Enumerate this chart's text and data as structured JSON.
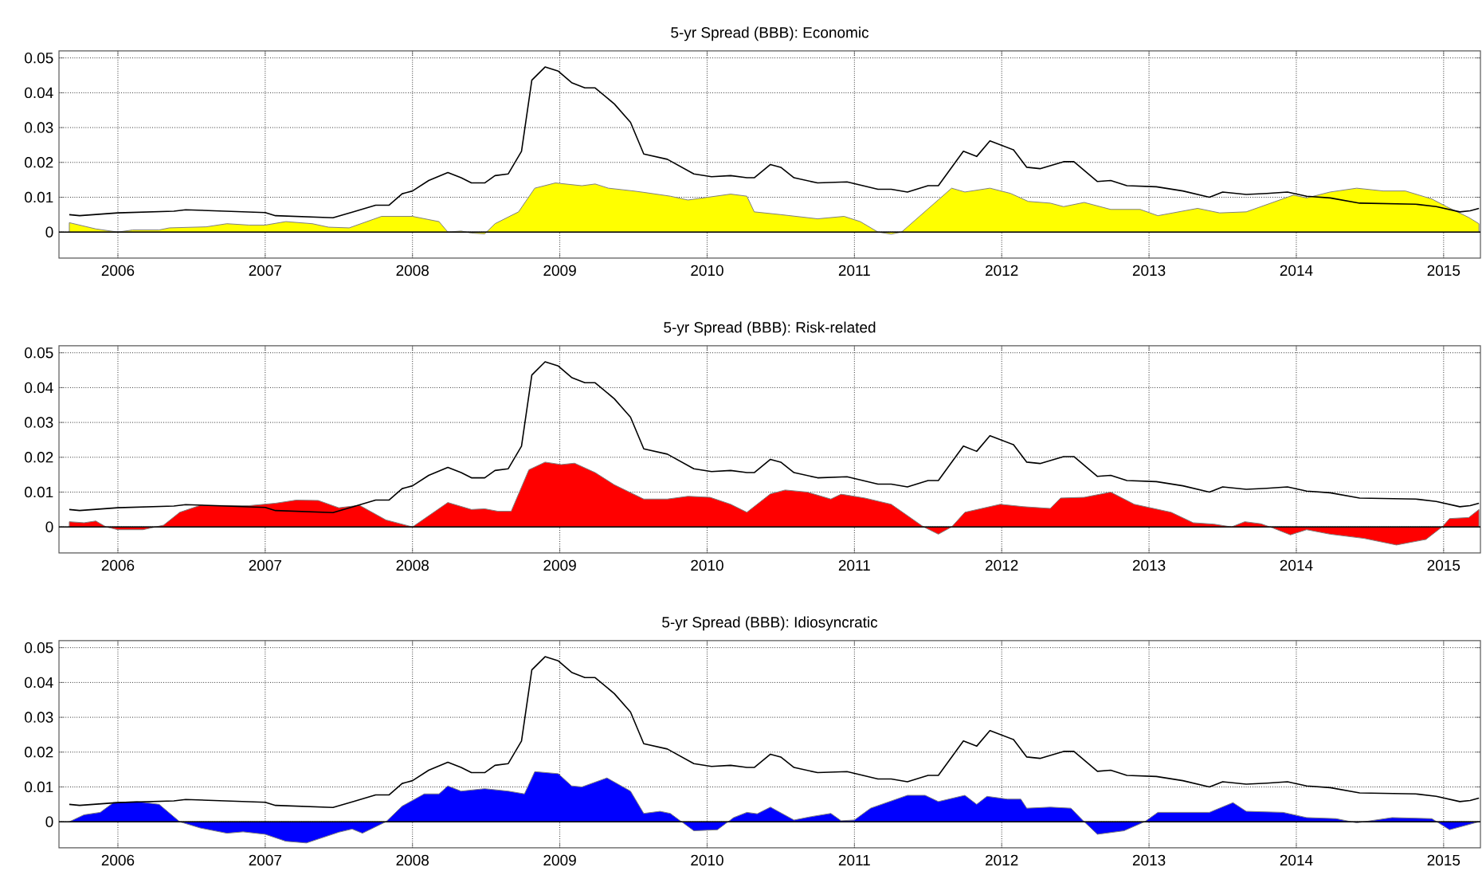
{
  "chart_data": [
    {
      "type": "area",
      "title": "5-yr Spread (BBB): Economic",
      "xlim": [
        2005.6,
        2015.25
      ],
      "ylim": [
        -0.0075,
        0.052
      ],
      "xticks": [
        2006,
        2007,
        2008,
        2009,
        2010,
        2011,
        2012,
        2013,
        2014,
        2015
      ],
      "yticks": [
        0,
        0.01,
        0.02,
        0.03,
        0.04,
        0.05
      ],
      "grid": true,
      "ref_lines": [
        {
          "axis": "y",
          "value": 0,
          "color": "#000000"
        }
      ],
      "series": [
        {
          "color": "#ffff00",
          "x": [
            2005.67,
            2005.85,
            2006.0,
            2006.1,
            2006.28,
            2006.35,
            2006.6,
            2006.74,
            2006.89,
            2007.0,
            2007.14,
            2007.32,
            2007.43,
            2007.57,
            2007.79,
            2008.0,
            2008.18,
            2008.24,
            2008.33,
            2008.4,
            2008.49,
            2008.56,
            2008.72,
            2008.83,
            2008.97,
            2009.15,
            2009.24,
            2009.33,
            2009.5,
            2009.57,
            2009.75,
            2009.87,
            2010.16,
            2010.27,
            2010.32,
            2010.5,
            2010.75,
            2010.93,
            2011.04,
            2011.16,
            2011.25,
            2011.32,
            2011.66,
            2011.75,
            2011.92,
            2012.06,
            2012.18,
            2012.33,
            2012.42,
            2012.56,
            2012.74,
            2012.94,
            2013.06,
            2013.33,
            2013.48,
            2013.66,
            2013.98,
            2014.07,
            2014.23,
            2014.41,
            2014.59,
            2014.74,
            2014.92,
            2015.02,
            2015.17,
            2015.24
          ],
          "values": [
            0.0027,
            0.0009,
            0.0,
            0.0006,
            0.0006,
            0.0012,
            0.0015,
            0.0024,
            0.002,
            0.002,
            0.003,
            0.0024,
            0.0014,
            0.0012,
            0.0045,
            0.0045,
            0.003,
            0.0,
            0.0003,
            -0.0003,
            -0.0005,
            0.0024,
            0.0058,
            0.0126,
            0.0141,
            0.0133,
            0.0138,
            0.0126,
            0.0118,
            0.0114,
            0.0103,
            0.0092,
            0.0109,
            0.0103,
            0.0058,
            0.005,
            0.0038,
            0.0045,
            0.003,
            0.0,
            -0.0006,
            0.0,
            0.0126,
            0.0115,
            0.0126,
            0.0111,
            0.0088,
            0.0083,
            0.0073,
            0.0085,
            0.0065,
            0.0065,
            0.0047,
            0.0068,
            0.0055,
            0.0058,
            0.0106,
            0.0098,
            0.0115,
            0.0126,
            0.0118,
            0.0118,
            0.0095,
            0.0073,
            0.0042,
            0.0024
          ]
        },
        {
          "type": "line",
          "color": "#000000",
          "x": [
            2005.67,
            2005.74,
            2006.0,
            2006.38,
            2006.46,
            2007.0,
            2007.07,
            2007.46,
            2007.6,
            2007.75,
            2007.84,
            2007.93,
            2008.0,
            2008.11,
            2008.24,
            2008.33,
            2008.4,
            2008.49,
            2008.56,
            2008.65,
            2008.74,
            2008.81,
            2008.9,
            2008.99,
            2009.08,
            2009.17,
            2009.24,
            2009.37,
            2009.48,
            2009.57,
            2009.73,
            2009.91,
            2010.03,
            2010.16,
            2010.27,
            2010.32,
            2010.43,
            2010.5,
            2010.59,
            2010.75,
            2010.95,
            2011.16,
            2011.25,
            2011.36,
            2011.5,
            2011.57,
            2011.74,
            2011.83,
            2011.92,
            2012.08,
            2012.17,
            2012.26,
            2012.42,
            2012.49,
            2012.65,
            2012.74,
            2012.85,
            2013.05,
            2013.23,
            2013.41,
            2013.5,
            2013.66,
            2013.8,
            2013.94,
            2014.07,
            2014.23,
            2014.43,
            2014.81,
            2014.95,
            2015.11,
            2015.18,
            2015.24
          ],
          "values": [
            0.005,
            0.0047,
            0.0055,
            0.006,
            0.0064,
            0.0056,
            0.0047,
            0.0041,
            0.0058,
            0.0077,
            0.0077,
            0.011,
            0.0118,
            0.0148,
            0.0171,
            0.0156,
            0.0141,
            0.0141,
            0.0162,
            0.0167,
            0.0232,
            0.0436,
            0.0474,
            0.0462,
            0.0429,
            0.0414,
            0.0414,
            0.0368,
            0.0315,
            0.0224,
            0.0209,
            0.0167,
            0.0159,
            0.0162,
            0.0156,
            0.0156,
            0.0194,
            0.0186,
            0.0156,
            0.0141,
            0.0144,
            0.0123,
            0.0123,
            0.0115,
            0.0133,
            0.0133,
            0.0232,
            0.0217,
            0.0262,
            0.0236,
            0.0186,
            0.0182,
            0.0202,
            0.0202,
            0.0145,
            0.0148,
            0.0133,
            0.013,
            0.0118,
            0.01,
            0.0115,
            0.0108,
            0.0111,
            0.0115,
            0.0103,
            0.0098,
            0.0083,
            0.008,
            0.0073,
            0.0058,
            0.0061,
            0.0068
          ]
        }
      ]
    },
    {
      "type": "area",
      "title": "5-yr Spread (BBB): Risk-related",
      "xlim": [
        2005.6,
        2015.25
      ],
      "ylim": [
        -0.0075,
        0.052
      ],
      "xticks": [
        2006,
        2007,
        2008,
        2009,
        2010,
        2011,
        2012,
        2013,
        2014,
        2015
      ],
      "yticks": [
        0,
        0.01,
        0.02,
        0.03,
        0.04,
        0.05
      ],
      "grid": true,
      "ref_lines": [
        {
          "axis": "y",
          "value": 0,
          "color": "#000000"
        }
      ],
      "series": [
        {
          "color": "#ff0000",
          "x": [
            2005.67,
            2005.77,
            2005.85,
            2005.92,
            2006.0,
            2006.17,
            2006.31,
            2006.42,
            2006.56,
            2006.89,
            2007.07,
            2007.21,
            2007.36,
            2007.5,
            2007.64,
            2007.82,
            2008.0,
            2008.24,
            2008.4,
            2008.49,
            2008.58,
            2008.67,
            2008.79,
            2008.9,
            2009.01,
            2009.1,
            2009.24,
            2009.37,
            2009.57,
            2009.73,
            2009.87,
            2010.02,
            2010.16,
            2010.27,
            2010.43,
            2010.53,
            2010.68,
            2010.84,
            2010.91,
            2011.07,
            2011.25,
            2011.47,
            2011.57,
            2011.66,
            2011.75,
            2011.99,
            2012.15,
            2012.33,
            2012.4,
            2012.56,
            2012.74,
            2012.9,
            2013.15,
            2013.3,
            2013.44,
            2013.56,
            2013.65,
            2013.76,
            2013.84,
            2013.96,
            2014.07,
            2014.23,
            2014.46,
            2014.68,
            2014.88,
            2014.99,
            2015.04,
            2015.17,
            2015.24
          ],
          "values": [
            0.0015,
            0.0012,
            0.0017,
            0.0,
            -0.0008,
            -0.0008,
            0.0005,
            0.0042,
            0.0062,
            0.0061,
            0.0068,
            0.0077,
            0.0076,
            0.0055,
            0.0062,
            0.002,
            0.0,
            0.007,
            0.005,
            0.0052,
            0.0045,
            0.0045,
            0.0164,
            0.0186,
            0.0179,
            0.0183,
            0.0156,
            0.0121,
            0.008,
            0.008,
            0.0088,
            0.0085,
            0.0065,
            0.0042,
            0.0095,
            0.0106,
            0.01,
            0.008,
            0.0094,
            0.0083,
            0.0065,
            0.0,
            -0.0021,
            0.0,
            0.0042,
            0.0065,
            0.0058,
            0.0053,
            0.0083,
            0.0085,
            0.01,
            0.0065,
            0.0042,
            0.0012,
            0.0008,
            0.0,
            0.0015,
            0.0009,
            -0.0003,
            -0.0023,
            -0.0008,
            -0.0021,
            -0.0033,
            -0.0052,
            -0.0036,
            0.0,
            0.0024,
            0.0027,
            0.005
          ]
        },
        {
          "type": "line",
          "color": "#000000",
          "x": [
            2005.67,
            2005.74,
            2006.0,
            2006.38,
            2006.46,
            2007.0,
            2007.07,
            2007.46,
            2007.6,
            2007.75,
            2007.84,
            2007.93,
            2008.0,
            2008.11,
            2008.24,
            2008.33,
            2008.4,
            2008.49,
            2008.56,
            2008.65,
            2008.74,
            2008.81,
            2008.9,
            2008.99,
            2009.08,
            2009.17,
            2009.24,
            2009.37,
            2009.48,
            2009.57,
            2009.73,
            2009.91,
            2010.03,
            2010.16,
            2010.27,
            2010.32,
            2010.43,
            2010.5,
            2010.59,
            2010.75,
            2010.95,
            2011.16,
            2011.25,
            2011.36,
            2011.5,
            2011.57,
            2011.74,
            2011.83,
            2011.92,
            2012.08,
            2012.17,
            2012.26,
            2012.42,
            2012.49,
            2012.65,
            2012.74,
            2012.85,
            2013.05,
            2013.23,
            2013.41,
            2013.5,
            2013.66,
            2013.8,
            2013.94,
            2014.07,
            2014.23,
            2014.43,
            2014.81,
            2014.95,
            2015.11,
            2015.18,
            2015.24
          ],
          "values": [
            0.005,
            0.0047,
            0.0055,
            0.006,
            0.0064,
            0.0056,
            0.0047,
            0.0041,
            0.0058,
            0.0077,
            0.0077,
            0.011,
            0.0118,
            0.0148,
            0.0171,
            0.0156,
            0.0141,
            0.0141,
            0.0162,
            0.0167,
            0.0232,
            0.0436,
            0.0474,
            0.0462,
            0.0429,
            0.0414,
            0.0414,
            0.0368,
            0.0315,
            0.0224,
            0.0209,
            0.0167,
            0.0159,
            0.0162,
            0.0156,
            0.0156,
            0.0194,
            0.0186,
            0.0156,
            0.0141,
            0.0144,
            0.0123,
            0.0123,
            0.0115,
            0.0133,
            0.0133,
            0.0232,
            0.0217,
            0.0262,
            0.0236,
            0.0186,
            0.0182,
            0.0202,
            0.0202,
            0.0145,
            0.0148,
            0.0133,
            0.013,
            0.0118,
            0.01,
            0.0115,
            0.0108,
            0.0111,
            0.0115,
            0.0103,
            0.0098,
            0.0083,
            0.008,
            0.0073,
            0.0058,
            0.0061,
            0.0068
          ]
        }
      ]
    },
    {
      "type": "area",
      "title": "5-yr Spread (BBB): Idiosyncratic",
      "xlim": [
        2005.6,
        2015.25
      ],
      "ylim": [
        -0.0075,
        0.052
      ],
      "xticks": [
        2006,
        2007,
        2008,
        2009,
        2010,
        2011,
        2012,
        2013,
        2014,
        2015
      ],
      "yticks": [
        0,
        0.01,
        0.02,
        0.03,
        0.04,
        0.05
      ],
      "grid": true,
      "ref_lines": [
        {
          "axis": "y",
          "value": 0,
          "color": "#000000"
        }
      ],
      "series": [
        {
          "color": "#0000ff",
          "x": [
            2005.67,
            2005.77,
            2005.88,
            2005.97,
            2006.13,
            2006.28,
            2006.42,
            2006.56,
            2006.74,
            2006.85,
            2007.0,
            2007.14,
            2007.28,
            2007.5,
            2007.59,
            2007.66,
            2007.82,
            2007.93,
            2008.08,
            2008.18,
            2008.24,
            2008.33,
            2008.49,
            2008.65,
            2008.76,
            2008.83,
            2008.99,
            2009.08,
            2009.15,
            2009.32,
            2009.48,
            2009.57,
            2009.68,
            2009.75,
            2009.91,
            2010.07,
            2010.18,
            2010.27,
            2010.34,
            2010.43,
            2010.59,
            2010.71,
            2010.84,
            2010.91,
            2011.0,
            2011.11,
            2011.36,
            2011.48,
            2011.57,
            2011.75,
            2011.83,
            2011.9,
            2012.04,
            2012.13,
            2012.17,
            2012.33,
            2012.47,
            2012.56,
            2012.65,
            2012.83,
            2012.97,
            2013.06,
            2013.41,
            2013.57,
            2013.66,
            2013.91,
            2014.07,
            2014.27,
            2014.41,
            2014.65,
            2014.92,
            2015.04,
            2015.24
          ],
          "values": [
            0.0,
            0.002,
            0.0027,
            0.0055,
            0.0058,
            0.005,
            0.0,
            -0.0018,
            -0.0033,
            -0.0029,
            -0.0036,
            -0.0056,
            -0.0061,
            -0.003,
            -0.0021,
            -0.0033,
            0.0,
            0.0045,
            0.008,
            0.008,
            0.0103,
            0.0088,
            0.0095,
            0.0088,
            0.008,
            0.0144,
            0.0138,
            0.0103,
            0.01,
            0.0126,
            0.0088,
            0.0024,
            0.003,
            0.0024,
            -0.0026,
            -0.0023,
            0.0012,
            0.0027,
            0.0023,
            0.0042,
            0.0005,
            0.0015,
            0.0024,
            0.0003,
            0.0005,
            0.0039,
            0.0076,
            0.0076,
            0.0058,
            0.0076,
            0.005,
            0.0073,
            0.0065,
            0.0065,
            0.0039,
            0.0042,
            0.0039,
            0.0,
            -0.0036,
            -0.0026,
            0.0,
            0.0027,
            0.0027,
            0.0055,
            0.003,
            0.0027,
            0.0012,
            0.0009,
            -0.0003,
            0.0012,
            0.0009,
            -0.0023,
            0.0
          ]
        },
        {
          "type": "line",
          "color": "#000000",
          "x": [
            2005.67,
            2005.74,
            2006.0,
            2006.38,
            2006.46,
            2007.0,
            2007.07,
            2007.46,
            2007.6,
            2007.75,
            2007.84,
            2007.93,
            2008.0,
            2008.11,
            2008.24,
            2008.33,
            2008.4,
            2008.49,
            2008.56,
            2008.65,
            2008.74,
            2008.81,
            2008.9,
            2008.99,
            2009.08,
            2009.17,
            2009.24,
            2009.37,
            2009.48,
            2009.57,
            2009.73,
            2009.91,
            2010.03,
            2010.16,
            2010.27,
            2010.32,
            2010.43,
            2010.5,
            2010.59,
            2010.75,
            2010.95,
            2011.16,
            2011.25,
            2011.36,
            2011.5,
            2011.57,
            2011.74,
            2011.83,
            2011.92,
            2012.08,
            2012.17,
            2012.26,
            2012.42,
            2012.49,
            2012.65,
            2012.74,
            2012.85,
            2013.05,
            2013.23,
            2013.41,
            2013.5,
            2013.66,
            2013.8,
            2013.94,
            2014.07,
            2014.23,
            2014.43,
            2014.81,
            2014.95,
            2015.11,
            2015.18,
            2015.24
          ],
          "values": [
            0.005,
            0.0047,
            0.0055,
            0.006,
            0.0064,
            0.0056,
            0.0047,
            0.0041,
            0.0058,
            0.0077,
            0.0077,
            0.011,
            0.0118,
            0.0148,
            0.0171,
            0.0156,
            0.0141,
            0.0141,
            0.0162,
            0.0167,
            0.0232,
            0.0436,
            0.0474,
            0.0462,
            0.0429,
            0.0414,
            0.0414,
            0.0368,
            0.0315,
            0.0224,
            0.0209,
            0.0167,
            0.0159,
            0.0162,
            0.0156,
            0.0156,
            0.0194,
            0.0186,
            0.0156,
            0.0141,
            0.0144,
            0.0123,
            0.0123,
            0.0115,
            0.0133,
            0.0133,
            0.0232,
            0.0217,
            0.0262,
            0.0236,
            0.0186,
            0.0182,
            0.0202,
            0.0202,
            0.0145,
            0.0148,
            0.0133,
            0.013,
            0.0118,
            0.01,
            0.0115,
            0.0108,
            0.0111,
            0.0115,
            0.0103,
            0.0098,
            0.0083,
            0.008,
            0.0073,
            0.0058,
            0.0061,
            0.0068
          ]
        }
      ]
    }
  ]
}
